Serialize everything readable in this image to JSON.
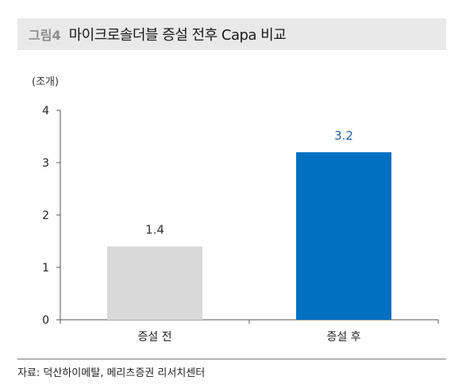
{
  "figure": {
    "number": "그림4",
    "title": "마이크로솔더블 증설 전후 Capa 비교"
  },
  "source": "자료: 덕산하이메탈, 메리츠증권 리서치센터",
  "colors": {
    "bar_before": "#d9d9d9",
    "bar_after": "#0070c0",
    "label_after": "#1f64ad",
    "label_before": "#333333"
  },
  "chart_data": {
    "type": "bar",
    "unit_label": "(조개)",
    "categories": [
      "증설 전",
      "증설 후"
    ],
    "values": [
      1.4,
      3.2
    ],
    "value_labels": [
      "1.4",
      "3.2"
    ],
    "ylim": [
      0,
      4
    ],
    "yticks": [
      "0",
      "1",
      "2",
      "3",
      "4"
    ],
    "grid": false,
    "legend": "none"
  }
}
